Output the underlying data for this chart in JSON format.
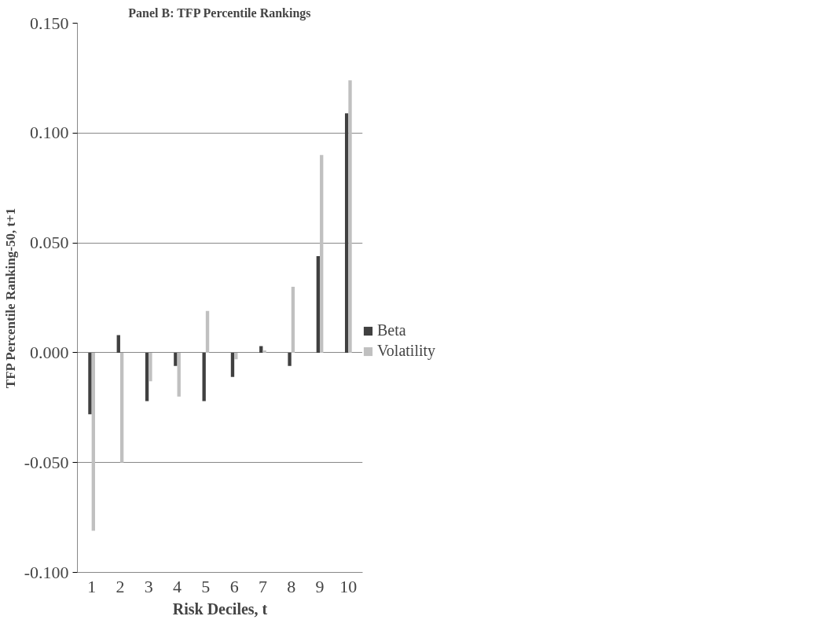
{
  "chart_data": {
    "type": "bar",
    "title": "Panel B: TFP Percentile Rankings",
    "xlabel": "Risk Deciles, t",
    "ylabel": "TFP Percentile Ranking-50, t+1",
    "categories": [
      "1",
      "2",
      "3",
      "4",
      "5",
      "6",
      "7",
      "8",
      "9",
      "10"
    ],
    "series": [
      {
        "name": "Beta",
        "color": "#404040",
        "values": [
          -0.028,
          0.008,
          -0.022,
          -0.006,
          -0.022,
          -0.011,
          0.003,
          -0.006,
          0.044,
          0.109
        ]
      },
      {
        "name": "Volatility",
        "color": "#c0c0c0",
        "values": [
          -0.081,
          -0.05,
          -0.013,
          -0.02,
          0.019,
          -0.003,
          0.001,
          0.03,
          0.09,
          0.124
        ]
      }
    ],
    "ylim": [
      -0.1,
      0.15
    ],
    "yticks": [
      {
        "value": -0.1,
        "label": "-0.100"
      },
      {
        "value": -0.05,
        "label": "-0.050"
      },
      {
        "value": 0,
        "label": "0.000"
      },
      {
        "value": 0.05,
        "label": "0.050"
      },
      {
        "value": 0.1,
        "label": "0.100"
      },
      {
        "value": 0.15,
        "label": "0.150"
      }
    ],
    "grid": "y",
    "legend": "right"
  }
}
